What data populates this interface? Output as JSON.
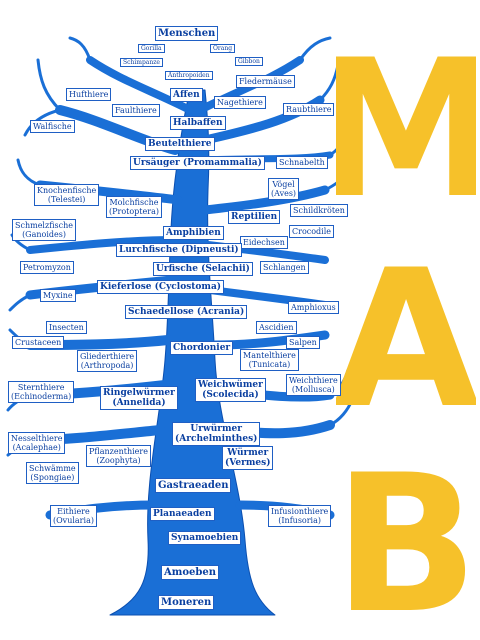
{
  "colors": {
    "tree": "#1a6fd6",
    "tree_dark": "#0b4fb0",
    "label_text": "#0a3fa0",
    "logo": "#f6c12a"
  },
  "logo_letters": [
    "M",
    "A",
    "B"
  ],
  "labels": {
    "menschen": "Menschen",
    "gorilla": "Gorilla",
    "orang": "Orang",
    "schimpanze": "Schimpanze",
    "gibbon": "Gibbon",
    "anthropoiden": "Anthropoiden",
    "fledermaeuse": "Fledermäuse",
    "hufthiere": "Hufthiere",
    "affen": "Affen",
    "faulthiere": "Faulthiere",
    "nagethiere": "Nagethiere",
    "raubthiere": "Raubthiere",
    "walfische": "Walfische",
    "halbaffen": "Halbaffen",
    "beutelthiere": "Beutelthiere",
    "ursaeuger": "Ursäuger (Promammalia)",
    "schnabelthiere": "Schnabelth",
    "knochenfische": "Knochenfische\n(Telestei)",
    "voegel": "Vögel\n(Aves)",
    "molchfische": "Molchfische\n(Protoptera)",
    "schildkroeten": "Schildkröten",
    "reptilien": "Reptilien",
    "schmelzfische": "Schmelzfische\n(Ganoides)",
    "amphibien": "Amphibien",
    "crocodile": "Crocodile",
    "eidechsen": "Eidechsen",
    "lurchfische": "Lurchfische (Dipneusti)",
    "petromyzon": "Petromyzon",
    "urfische": "Urfische (Selachii)",
    "schlangen": "Schlangen",
    "kieferlose": "Kieferlose (Cyclostoma)",
    "myxine": "Myxine",
    "amphioxus": "Amphioxus",
    "schaedellose": "Schaedellose (Acrania)",
    "insecten": "Insecten",
    "ascidien": "Ascidien",
    "crustaceen": "Crustaceen",
    "gliederthiere": "Gliederthiere\n(Arthropoda)",
    "chordonier": "Chordonier",
    "salpen": "Salpen",
    "mantelthiere": "Mantelthiere\n(Tunicata)",
    "sternthiere": "Sternthiere\n(Echinoderma)",
    "ringelwuermer": "Ringelwürmer\n(Annelida)",
    "weichwuermer": "Weichwümer\n(Scolecida)",
    "weichthiere": "Weichthiere\n(Mollusca)",
    "urwuermer": "Urwürmer\n(Archelminthes)",
    "nesselthiere": "Nesselthiere\n(Acalephae)",
    "pflanzenthiere": "Pflanzenthiere\n(Zoophyta)",
    "wuermer": "Würmer\n(Vermes)",
    "schwaemme": "Schwämme\n(Spongiae)",
    "gastraeaden": "Gastraeaden",
    "eithiere": "Eithiere\n(Ovularia)",
    "planaeaden": "Planaeaden",
    "infusionthiere": "Infusionthiere\n(Infusoria)",
    "synamoebien": "Synamoebien",
    "amoeben": "Amoeben",
    "moneren": "Moneren"
  }
}
